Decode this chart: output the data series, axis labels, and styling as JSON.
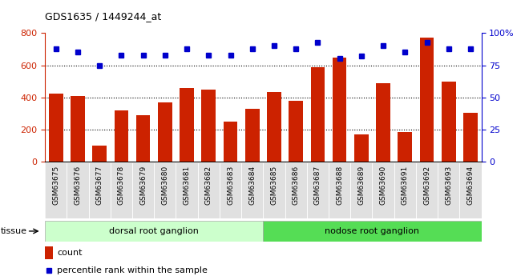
{
  "title": "GDS1635 / 1449244_at",
  "categories": [
    "GSM63675",
    "GSM63676",
    "GSM63677",
    "GSM63678",
    "GSM63679",
    "GSM63680",
    "GSM63681",
    "GSM63682",
    "GSM63683",
    "GSM63684",
    "GSM63685",
    "GSM63686",
    "GSM63687",
    "GSM63688",
    "GSM63689",
    "GSM63690",
    "GSM63691",
    "GSM63692",
    "GSM63693",
    "GSM63694"
  ],
  "counts": [
    425,
    410,
    100,
    320,
    290,
    370,
    460,
    450,
    250,
    330,
    435,
    380,
    590,
    645,
    170,
    490,
    185,
    770,
    500,
    305
  ],
  "percentile": [
    88,
    85,
    75,
    83,
    83,
    83,
    88,
    83,
    83,
    88,
    90,
    88,
    93,
    80,
    82,
    90,
    85,
    93,
    88,
    88
  ],
  "group1_count": 10,
  "group1_label": "dorsal root ganglion",
  "group1_color": "#ccffcc",
  "group2_label": "nodose root ganglion",
  "group2_color": "#55dd55",
  "bar_color": "#cc2200",
  "dot_color": "#0000cc",
  "ylim_left": [
    0,
    800
  ],
  "ylim_right": [
    0,
    100
  ],
  "yticks_left": [
    0,
    200,
    400,
    600,
    800
  ],
  "yticks_right": [
    0,
    25,
    50,
    75,
    100
  ],
  "ytick_labels_right": [
    "0",
    "25",
    "50",
    "75",
    "100%"
  ],
  "grid_values": [
    200,
    400,
    600
  ],
  "tissue_label": "tissue",
  "legend_count_label": "count",
  "legend_percentile_label": "percentile rank within the sample",
  "plot_bg": "#ffffff",
  "xtick_bg": "#e0e0e0"
}
